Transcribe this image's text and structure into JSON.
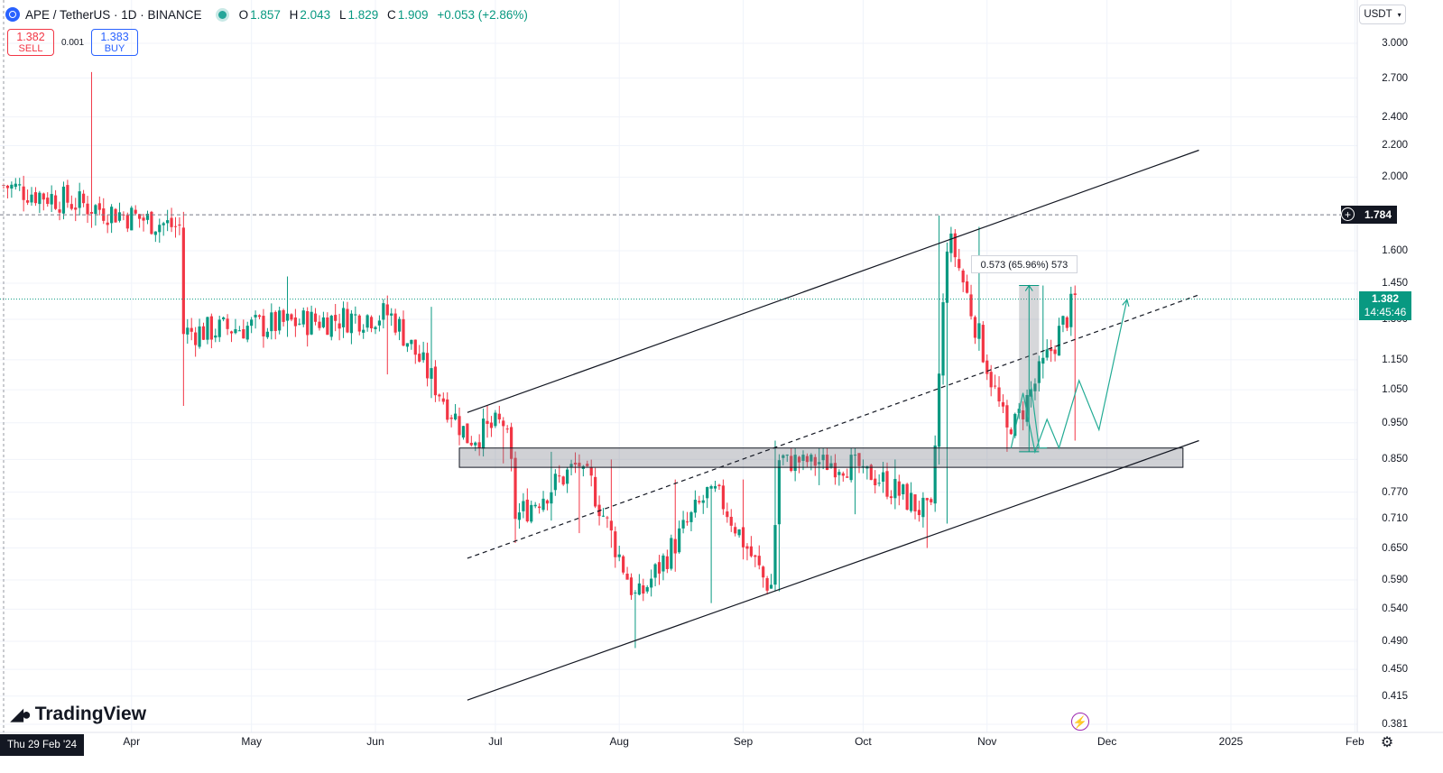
{
  "header": {
    "title": "APE / TetherUS · 1D · BINANCE",
    "open_label": "O",
    "open": "1.857",
    "high_label": "H",
    "high": "2.043",
    "low_label": "L",
    "low": "1.829",
    "close_label": "C",
    "close": "1.909",
    "change": "+0.053 (+2.86%)"
  },
  "trade": {
    "sell_price": "1.382",
    "sell_label": "SELL",
    "spread": "0.001",
    "buy_price": "1.383",
    "buy_label": "BUY"
  },
  "currency": {
    "label": "USDT"
  },
  "price_axis": [
    "3.000",
    "2.700",
    "2.400",
    "2.200",
    "2.000",
    "1.600",
    "1.450",
    "1.300",
    "1.150",
    "1.050",
    "0.950",
    "0.850",
    "0.770",
    "0.710",
    "0.650",
    "0.590",
    "0.540",
    "0.490",
    "0.450",
    "0.415",
    "0.381"
  ],
  "time_axis": [
    "Apr",
    "May",
    "Jun",
    "Jul",
    "Aug",
    "Sep",
    "Oct",
    "Nov",
    "Dec",
    "2025",
    "Feb"
  ],
  "cursor_date": "Thu 29 Feb '24",
  "alert_level": "1.784",
  "last_price": {
    "price": "1.382",
    "countdown": "14:45:46"
  },
  "measure_label": "0.573 (65.96%) 573",
  "logo_text": "TradingView",
  "colors": {
    "up": "#089981",
    "down": "#f23645",
    "accent": "#2962ff",
    "alert": "#9c27b0"
  },
  "chart_data": {
    "type": "candlestick",
    "symbol": "APE / TetherUS",
    "interval": "1D",
    "exchange": "BINANCE",
    "y_scale": "log",
    "ylim": [
      0.381,
      3.0
    ],
    "x_ticks": [
      "Apr",
      "May",
      "Jun",
      "Jul",
      "Aug",
      "Sep",
      "Oct",
      "Nov",
      "Dec",
      "2025",
      "Feb"
    ],
    "segments": [
      {
        "from": "2024-02-29",
        "to": "2024-04-12",
        "start": 1.95,
        "end": 1.72,
        "high": 2.75,
        "low": 1.6
      },
      {
        "from": "2024-04-13",
        "to": "2024-04-14",
        "start": 1.72,
        "end": 1.25,
        "high": 1.8,
        "low": 1.0
      },
      {
        "from": "2024-04-15",
        "to": "2024-06-04",
        "start": 1.25,
        "end": 1.32,
        "high": 1.48,
        "low": 1.1
      },
      {
        "from": "2024-06-05",
        "to": "2024-06-24",
        "start": 1.32,
        "end": 0.91,
        "high": 1.35,
        "low": 0.86
      },
      {
        "from": "2024-06-25",
        "to": "2024-07-03",
        "start": 0.91,
        "end": 0.95,
        "high": 1.0,
        "low": 0.84
      },
      {
        "from": "2024-07-04",
        "to": "2024-07-06",
        "start": 0.95,
        "end": 0.72,
        "high": 0.95,
        "low": 0.66
      },
      {
        "from": "2024-07-07",
        "to": "2024-07-22",
        "start": 0.72,
        "end": 0.84,
        "high": 0.87,
        "low": 0.68
      },
      {
        "from": "2024-07-23",
        "to": "2024-08-05",
        "start": 0.84,
        "end": 0.56,
        "high": 0.85,
        "low": 0.48
      },
      {
        "from": "2024-08-06",
        "to": "2024-08-24",
        "start": 0.56,
        "end": 0.78,
        "high": 0.8,
        "low": 0.55
      },
      {
        "from": "2024-08-25",
        "to": "2024-09-07",
        "start": 0.78,
        "end": 0.58,
        "high": 0.8,
        "low": 0.56
      },
      {
        "from": "2024-09-08",
        "to": "2024-09-10",
        "start": 0.58,
        "end": 0.85,
        "high": 0.9,
        "low": 0.57
      },
      {
        "from": "2024-09-11",
        "to": "2024-09-29",
        "start": 0.85,
        "end": 0.84,
        "high": 0.88,
        "low": 0.72
      },
      {
        "from": "2024-09-30",
        "to": "2024-10-17",
        "start": 0.84,
        "end": 0.72,
        "high": 0.85,
        "low": 0.65
      },
      {
        "from": "2024-10-18",
        "to": "2024-10-22",
        "start": 0.72,
        "end": 1.65,
        "high": 1.78,
        "low": 0.7
      },
      {
        "from": "2024-10-23",
        "to": "2024-11-06",
        "start": 1.65,
        "end": 0.92,
        "high": 1.72,
        "low": 0.87
      },
      {
        "from": "2024-11-07",
        "to": "2024-11-23",
        "start": 0.92,
        "end": 1.38,
        "high": 1.44,
        "low": 0.9
      }
    ],
    "current_price": 1.382,
    "alert_price": 1.784,
    "channel": {
      "upper": [
        {
          "date": "2024-06-24",
          "price": 0.98
        },
        {
          "date": "2024-12-24",
          "price": 2.17
        }
      ],
      "middle": [
        {
          "date": "2024-06-24",
          "price": 0.63
        },
        {
          "date": "2024-12-24",
          "price": 1.4
        }
      ],
      "lower": [
        {
          "date": "2024-06-24",
          "price": 0.41
        },
        {
          "date": "2024-12-24",
          "price": 0.9
        }
      ]
    },
    "support_zone": {
      "from": "2024-06-22",
      "to": "2024-12-20",
      "low": 0.83,
      "high": 0.88
    },
    "measure": {
      "from": "2024-11-09",
      "to": "2024-11-14",
      "low": 0.87,
      "high": 1.44,
      "label": "0.573 (65.96%) 573"
    },
    "projections": [
      [
        {
          "date": "2024-11-07",
          "price": 0.88
        },
        {
          "date": "2024-11-10",
          "price": 1.04
        },
        {
          "date": "2024-11-13",
          "price": 0.87
        },
        {
          "date": "2024-11-16",
          "price": 0.96
        },
        {
          "date": "2024-11-19",
          "price": 0.88
        },
        {
          "date": "2024-11-24",
          "price": 1.08
        },
        {
          "date": "2024-11-29",
          "price": 0.93
        },
        {
          "date": "2024-12-06",
          "price": 1.38
        }
      ],
      [
        {
          "date": "2024-11-12",
          "price": 1.06
        },
        {
          "date": "2024-11-14",
          "price": 0.88
        },
        {
          "date": "2024-11-16",
          "price": 0.88
        }
      ]
    ]
  }
}
